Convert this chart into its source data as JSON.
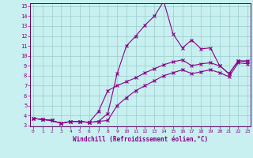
{
  "xlabel": "Windchill (Refroidissement éolien,°C)",
  "bg_color": "#c8f0f0",
  "line_color": "#880088",
  "grid_color": "#99cccc",
  "axis_color": "#880088",
  "spine_color": "#660066",
  "xmin": 0,
  "xmax": 23,
  "ymin": 3,
  "ymax": 15,
  "line1_x": [
    0,
    1,
    2,
    3,
    4,
    5,
    6,
    7,
    8,
    9,
    10,
    11,
    12,
    13,
    14,
    15,
    16,
    17,
    18,
    19,
    20,
    21,
    22,
    23
  ],
  "line1_y": [
    3.7,
    3.6,
    3.5,
    3.2,
    3.4,
    3.4,
    3.3,
    3.4,
    4.2,
    8.2,
    11.0,
    12.0,
    13.1,
    14.0,
    15.5,
    12.2,
    10.8,
    11.6,
    10.7,
    10.8,
    9.0,
    8.2,
    9.5,
    9.5
  ],
  "line2_x": [
    0,
    1,
    2,
    3,
    4,
    5,
    6,
    7,
    8,
    9,
    10,
    11,
    12,
    13,
    14,
    15,
    16,
    17,
    18,
    19,
    20,
    21,
    22,
    23
  ],
  "line2_y": [
    3.7,
    3.6,
    3.5,
    3.2,
    3.4,
    3.4,
    3.3,
    4.4,
    6.5,
    7.0,
    7.4,
    7.8,
    8.3,
    8.7,
    9.1,
    9.4,
    9.6,
    9.0,
    9.2,
    9.3,
    9.0,
    8.2,
    9.5,
    9.4
  ],
  "line3_x": [
    0,
    1,
    2,
    3,
    4,
    5,
    6,
    7,
    8,
    9,
    10,
    11,
    12,
    13,
    14,
    15,
    16,
    17,
    18,
    19,
    20,
    21,
    22,
    23
  ],
  "line3_y": [
    3.7,
    3.6,
    3.5,
    3.2,
    3.4,
    3.4,
    3.3,
    3.4,
    3.5,
    5.0,
    5.8,
    6.5,
    7.0,
    7.5,
    8.0,
    8.3,
    8.6,
    8.2,
    8.4,
    8.6,
    8.3,
    7.9,
    9.3,
    9.2
  ]
}
